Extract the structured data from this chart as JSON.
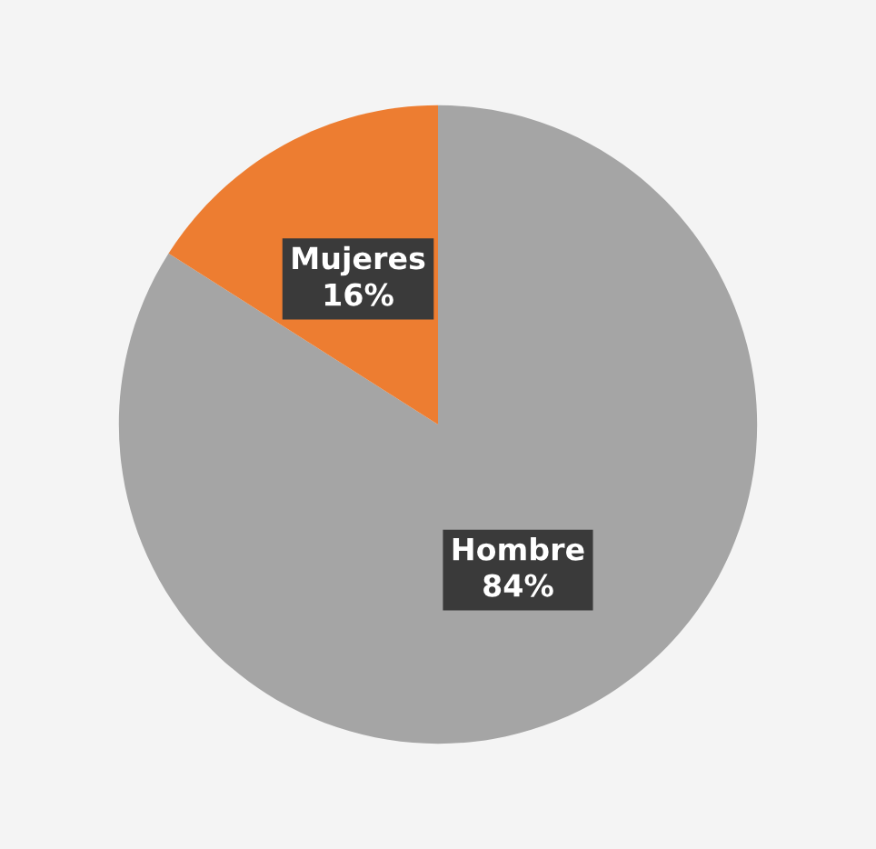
{
  "chart_data": {
    "type": "pie",
    "categories": [
      "Hombre",
      "Mujeres"
    ],
    "values": [
      84,
      16
    ],
    "colors": [
      "#a5a5a5",
      "#ed7d31"
    ],
    "value_labels": [
      "84%",
      "16%"
    ],
    "legend": false
  }
}
